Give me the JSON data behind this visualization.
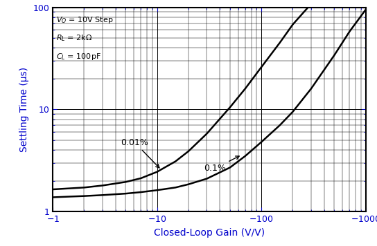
{
  "xlabel": "Closed-Loop Gain (V/V)",
  "ylabel": "Settling Time (µs)",
  "xlim": [
    1,
    1000
  ],
  "ylim": [
    1,
    100
  ],
  "curve_01pct": {
    "x": [
      1,
      2,
      3,
      5,
      7,
      10,
      15,
      20,
      30,
      50,
      70,
      100,
      150,
      200,
      300,
      500,
      700,
      1000
    ],
    "y": [
      1.38,
      1.42,
      1.45,
      1.5,
      1.55,
      1.62,
      1.72,
      1.85,
      2.1,
      2.7,
      3.5,
      4.8,
      7.0,
      9.5,
      16,
      34,
      58,
      95
    ]
  },
  "curve_001pct": {
    "x": [
      1,
      2,
      3,
      5,
      7,
      10,
      15,
      20,
      30,
      50,
      70,
      100,
      150,
      200,
      280
    ],
    "y": [
      1.65,
      1.72,
      1.8,
      1.95,
      2.12,
      2.45,
      3.1,
      3.9,
      5.8,
      10.5,
      16,
      26,
      45,
      68,
      100
    ]
  },
  "line_color": "#000000",
  "background_color": "#ffffff",
  "text_color": "#000000",
  "axis_color": "#0000cc",
  "label_color": "#0000cc",
  "annot_vo": "V",
  "annot_rl": "R",
  "annot_cl": "C",
  "label_001pct_text": "0.01%",
  "label_01pct_text": "0.1%"
}
